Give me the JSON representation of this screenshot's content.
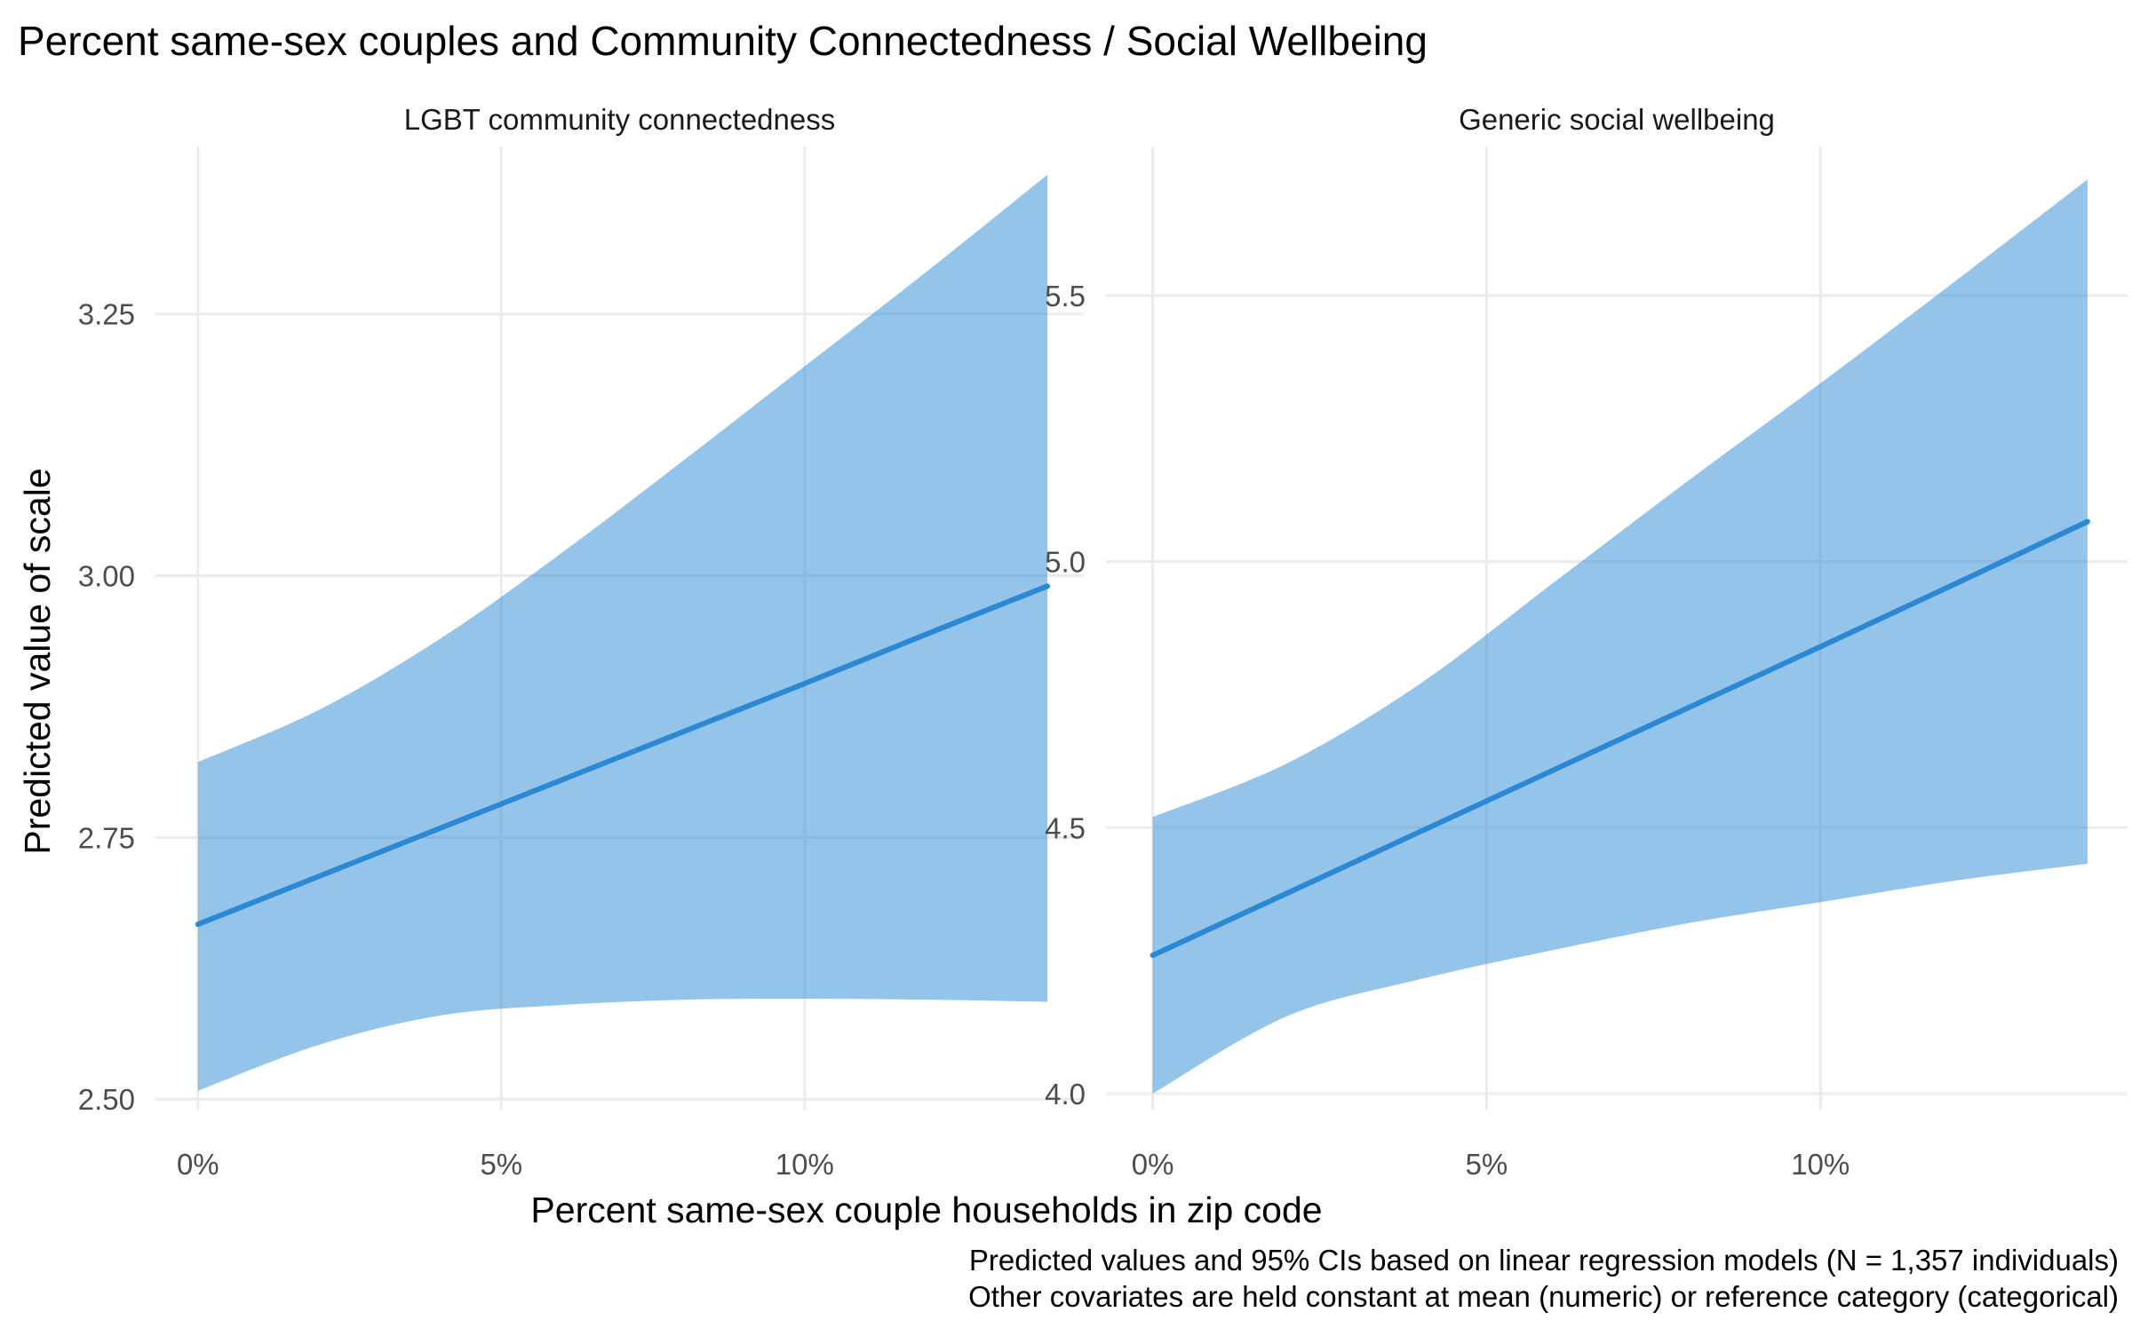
{
  "title": "Percent same-sex couples and Community Connectedness / Social Wellbeing",
  "x_axis_title": "Percent same-sex couple households in zip code",
  "y_axis_title": "Predicted value of scale",
  "caption_lines": [
    "Predicted values and 95% CIs based on linear regression models (N = 1,357 individuals)",
    "Other covariates are held constant at mean (numeric) or reference category (categorical)"
  ],
  "colors": {
    "ribbon": "#2a8ad6",
    "line": "#2a88d4",
    "grid": "#ebebeb"
  },
  "chart_data": [
    {
      "type": "line",
      "panel_title": "LGBT community connectedness",
      "x_ticks": [
        0,
        5,
        10
      ],
      "x_tick_labels": [
        "0%",
        "5%",
        "10%"
      ],
      "xlim": [
        -0.7,
        14.6
      ],
      "y_ticks": [
        2.5,
        2.75,
        3.0,
        3.25
      ],
      "y_tick_labels": [
        "2.50",
        "2.75",
        "3.00",
        "3.25"
      ],
      "ylim": [
        2.49,
        3.41
      ],
      "series": [
        {
          "x": [
            0,
            2,
            4,
            6,
            8,
            10,
            12,
            14
          ],
          "y": [
            2.667,
            2.713,
            2.759,
            2.805,
            2.851,
            2.897,
            2.944,
            2.99
          ],
          "lower": [
            2.508,
            2.552,
            2.58,
            2.59,
            2.595,
            2.596,
            2.595,
            2.593
          ],
          "upper": [
            2.822,
            2.872,
            2.94,
            3.022,
            3.11,
            3.2,
            3.29,
            3.383
          ]
        }
      ]
    },
    {
      "type": "line",
      "panel_title": "Generic social wellbeing",
      "x_ticks": [
        0,
        5,
        10
      ],
      "x_tick_labels": [
        "0%",
        "5%",
        "10%"
      ],
      "xlim": [
        -0.7,
        14.6
      ],
      "y_ticks": [
        4.0,
        4.5,
        5.0,
        5.5
      ],
      "y_tick_labels": [
        "4.0",
        "4.5",
        "5.0",
        "5.5"
      ],
      "ylim": [
        3.97,
        5.78
      ],
      "series": [
        {
          "x": [
            0,
            2,
            4,
            6,
            8,
            10,
            12,
            14
          ],
          "y": [
            4.26,
            4.376,
            4.492,
            4.608,
            4.724,
            4.84,
            4.957,
            5.075
          ],
          "lower": [
            4.0,
            4.145,
            4.215,
            4.27,
            4.32,
            4.36,
            4.4,
            4.432
          ],
          "upper": [
            4.52,
            4.62,
            4.77,
            4.96,
            5.15,
            5.335,
            5.525,
            5.718
          ]
        }
      ]
    }
  ]
}
